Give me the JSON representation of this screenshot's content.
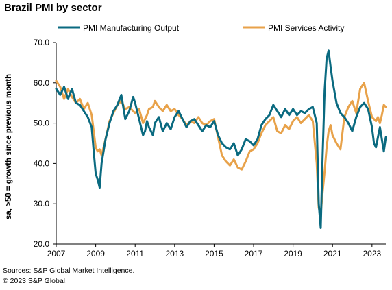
{
  "chart_data": {
    "type": "line",
    "title": "Brazil PMI by sector",
    "ylabel": "sa, >50 = growth since previous month",
    "xlabel": "",
    "ylim": [
      20,
      70
    ],
    "xlim": [
      2007,
      2023.7
    ],
    "y_ticks": [
      "20.0",
      "30.0",
      "40.0",
      "50.0",
      "60.0",
      "70.0"
    ],
    "x_ticks": [
      "2007",
      "2009",
      "2011",
      "2013",
      "2015",
      "2017",
      "2019",
      "2021",
      "2023"
    ],
    "grid": false,
    "legend_position": "top",
    "series": [
      {
        "name": "PMI Manufacturing Output",
        "color": "#0a6a80",
        "points": [
          [
            2007.0,
            58.5
          ],
          [
            2007.2,
            57.0
          ],
          [
            2007.4,
            59.0
          ],
          [
            2007.6,
            56.0
          ],
          [
            2007.8,
            58.5
          ],
          [
            2008.0,
            55.0
          ],
          [
            2008.2,
            54.5
          ],
          [
            2008.4,
            53.0
          ],
          [
            2008.6,
            51.5
          ],
          [
            2008.8,
            49.0
          ],
          [
            2008.9,
            43.0
          ],
          [
            2009.0,
            37.5
          ],
          [
            2009.1,
            36.0
          ],
          [
            2009.2,
            34.0
          ],
          [
            2009.3,
            40.0
          ],
          [
            2009.5,
            46.0
          ],
          [
            2009.7,
            50.0
          ],
          [
            2009.9,
            53.0
          ],
          [
            2010.1,
            54.5
          ],
          [
            2010.3,
            57.0
          ],
          [
            2010.5,
            51.0
          ],
          [
            2010.7,
            53.0
          ],
          [
            2010.9,
            56.5
          ],
          [
            2011.0,
            55.0
          ],
          [
            2011.2,
            51.0
          ],
          [
            2011.4,
            47.0
          ],
          [
            2011.5,
            48.0
          ],
          [
            2011.6,
            50.5
          ],
          [
            2011.7,
            49.0
          ],
          [
            2011.9,
            47.0
          ],
          [
            2012.0,
            50.0
          ],
          [
            2012.2,
            51.5
          ],
          [
            2012.4,
            48.0
          ],
          [
            2012.6,
            50.0
          ],
          [
            2012.8,
            48.5
          ],
          [
            2013.0,
            51.5
          ],
          [
            2013.2,
            53.0
          ],
          [
            2013.4,
            51.0
          ],
          [
            2013.6,
            49.0
          ],
          [
            2013.8,
            50.5
          ],
          [
            2014.0,
            51.0
          ],
          [
            2014.2,
            49.5
          ],
          [
            2014.4,
            48.0
          ],
          [
            2014.6,
            49.5
          ],
          [
            2014.8,
            49.0
          ],
          [
            2015.0,
            50.5
          ],
          [
            2015.2,
            47.0
          ],
          [
            2015.4,
            45.0
          ],
          [
            2015.6,
            44.0
          ],
          [
            2015.8,
            43.5
          ],
          [
            2016.0,
            45.0
          ],
          [
            2016.2,
            42.0
          ],
          [
            2016.4,
            43.5
          ],
          [
            2016.6,
            46.0
          ],
          [
            2016.8,
            45.5
          ],
          [
            2017.0,
            44.5
          ],
          [
            2017.2,
            46.0
          ],
          [
            2017.4,
            49.5
          ],
          [
            2017.6,
            51.0
          ],
          [
            2017.8,
            52.0
          ],
          [
            2018.0,
            54.5
          ],
          [
            2018.2,
            53.0
          ],
          [
            2018.4,
            51.5
          ],
          [
            2018.6,
            53.5
          ],
          [
            2018.8,
            52.0
          ],
          [
            2019.0,
            53.5
          ],
          [
            2019.2,
            52.0
          ],
          [
            2019.4,
            53.0
          ],
          [
            2019.6,
            52.5
          ],
          [
            2019.8,
            53.5
          ],
          [
            2020.0,
            54.0
          ],
          [
            2020.2,
            50.0
          ],
          [
            2020.3,
            30.0
          ],
          [
            2020.4,
            24.0
          ],
          [
            2020.5,
            42.0
          ],
          [
            2020.6,
            58.0
          ],
          [
            2020.7,
            66.0
          ],
          [
            2020.8,
            68.0
          ],
          [
            2020.9,
            64.0
          ],
          [
            2021.0,
            60.5
          ],
          [
            2021.2,
            55.0
          ],
          [
            2021.4,
            52.5
          ],
          [
            2021.6,
            51.5
          ],
          [
            2021.8,
            50.0
          ],
          [
            2022.0,
            48.0
          ],
          [
            2022.2,
            51.5
          ],
          [
            2022.4,
            54.0
          ],
          [
            2022.6,
            55.0
          ],
          [
            2022.8,
            53.5
          ],
          [
            2023.0,
            49.0
          ],
          [
            2023.1,
            45.0
          ],
          [
            2023.2,
            44.0
          ],
          [
            2023.3,
            46.5
          ],
          [
            2023.4,
            49.0
          ],
          [
            2023.5,
            46.0
          ],
          [
            2023.6,
            43.0
          ],
          [
            2023.7,
            46.5
          ]
        ]
      },
      {
        "name": "PMI Services Activity",
        "color": "#e8a24a",
        "points": [
          [
            2007.0,
            60.5
          ],
          [
            2007.2,
            59.0
          ],
          [
            2007.4,
            56.0
          ],
          [
            2007.6,
            58.5
          ],
          [
            2007.8,
            56.5
          ],
          [
            2008.0,
            55.0
          ],
          [
            2008.2,
            56.0
          ],
          [
            2008.4,
            53.5
          ],
          [
            2008.6,
            55.0
          ],
          [
            2008.8,
            52.0
          ],
          [
            2008.9,
            48.0
          ],
          [
            2009.0,
            44.0
          ],
          [
            2009.1,
            43.0
          ],
          [
            2009.2,
            43.5
          ],
          [
            2009.3,
            42.0
          ],
          [
            2009.5,
            46.0
          ],
          [
            2009.7,
            50.5
          ],
          [
            2009.9,
            52.5
          ],
          [
            2010.1,
            54.5
          ],
          [
            2010.3,
            55.5
          ],
          [
            2010.5,
            53.5
          ],
          [
            2010.7,
            54.0
          ],
          [
            2010.9,
            53.0
          ],
          [
            2011.0,
            52.5
          ],
          [
            2011.2,
            53.5
          ],
          [
            2011.4,
            50.0
          ],
          [
            2011.5,
            51.0
          ],
          [
            2011.6,
            52.0
          ],
          [
            2011.7,
            53.5
          ],
          [
            2011.9,
            54.0
          ],
          [
            2012.0,
            55.5
          ],
          [
            2012.2,
            54.0
          ],
          [
            2012.4,
            53.0
          ],
          [
            2012.6,
            54.5
          ],
          [
            2012.8,
            53.0
          ],
          [
            2013.0,
            53.5
          ],
          [
            2013.2,
            52.0
          ],
          [
            2013.4,
            51.0
          ],
          [
            2013.6,
            49.5
          ],
          [
            2013.8,
            50.5
          ],
          [
            2014.0,
            50.0
          ],
          [
            2014.2,
            51.5
          ],
          [
            2014.4,
            50.0
          ],
          [
            2014.6,
            49.5
          ],
          [
            2014.8,
            50.5
          ],
          [
            2015.0,
            51.0
          ],
          [
            2015.2,
            46.5
          ],
          [
            2015.4,
            42.0
          ],
          [
            2015.6,
            40.5
          ],
          [
            2015.8,
            39.5
          ],
          [
            2016.0,
            41.0
          ],
          [
            2016.2,
            39.0
          ],
          [
            2016.4,
            38.5
          ],
          [
            2016.6,
            40.5
          ],
          [
            2016.8,
            43.0
          ],
          [
            2017.0,
            43.5
          ],
          [
            2017.2,
            45.0
          ],
          [
            2017.4,
            47.5
          ],
          [
            2017.6,
            49.5
          ],
          [
            2017.8,
            50.5
          ],
          [
            2018.0,
            51.5
          ],
          [
            2018.2,
            48.0
          ],
          [
            2018.4,
            47.5
          ],
          [
            2018.6,
            49.5
          ],
          [
            2018.8,
            48.5
          ],
          [
            2019.0,
            50.5
          ],
          [
            2019.2,
            51.5
          ],
          [
            2019.4,
            50.0
          ],
          [
            2019.6,
            51.0
          ],
          [
            2019.8,
            52.0
          ],
          [
            2020.0,
            50.5
          ],
          [
            2020.2,
            40.0
          ],
          [
            2020.3,
            29.0
          ],
          [
            2020.4,
            27.5
          ],
          [
            2020.5,
            33.0
          ],
          [
            2020.6,
            38.0
          ],
          [
            2020.7,
            44.0
          ],
          [
            2020.8,
            48.0
          ],
          [
            2020.9,
            49.5
          ],
          [
            2021.0,
            47.0
          ],
          [
            2021.2,
            45.0
          ],
          [
            2021.4,
            43.5
          ],
          [
            2021.6,
            51.5
          ],
          [
            2021.8,
            54.0
          ],
          [
            2022.0,
            55.5
          ],
          [
            2022.2,
            52.5
          ],
          [
            2022.4,
            58.5
          ],
          [
            2022.6,
            60.0
          ],
          [
            2022.8,
            55.5
          ],
          [
            2023.0,
            51.5
          ],
          [
            2023.1,
            51.0
          ],
          [
            2023.2,
            50.5
          ],
          [
            2023.3,
            51.5
          ],
          [
            2023.4,
            50.0
          ],
          [
            2023.5,
            52.0
          ],
          [
            2023.6,
            54.5
          ],
          [
            2023.7,
            54.0
          ]
        ]
      }
    ]
  },
  "footer": {
    "source": "Sources: S&P Global Market Intelligence.",
    "copyright": "© 2023 S&P Global."
  }
}
